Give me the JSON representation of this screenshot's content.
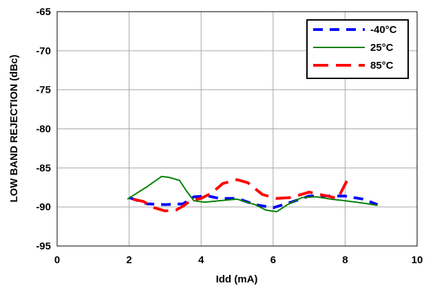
{
  "chart_data": {
    "type": "line",
    "title": "",
    "xlabel": "Idd (mA)",
    "ylabel": "LOW BAND REJECTION (dBc)",
    "xlim": [
      0,
      10
    ],
    "ylim": [
      -95,
      -65
    ],
    "x_ticks": [
      0,
      2,
      4,
      6,
      8,
      10
    ],
    "y_ticks": [
      -65,
      -70,
      -75,
      -80,
      -85,
      -90,
      -95
    ],
    "grid": true,
    "legend_position": "top-right",
    "series": [
      {
        "name": "-40°C",
        "color": "#0000ff",
        "dash": "short-dash",
        "points": [
          [
            2.0,
            -88.8
          ],
          [
            2.5,
            -89.6
          ],
          [
            3.0,
            -89.7
          ],
          [
            3.5,
            -89.6
          ],
          [
            3.8,
            -88.7
          ],
          [
            4.2,
            -88.6
          ],
          [
            4.5,
            -88.9
          ],
          [
            5.0,
            -88.9
          ],
          [
            5.5,
            -89.7
          ],
          [
            6.0,
            -90.1
          ],
          [
            6.5,
            -89.4
          ],
          [
            7.0,
            -88.6
          ],
          [
            7.5,
            -88.6
          ],
          [
            8.0,
            -88.6
          ],
          [
            8.5,
            -89.0
          ],
          [
            8.9,
            -89.7
          ]
        ]
      },
      {
        "name": "25°C",
        "color": "#008000",
        "dash": "solid",
        "points": [
          [
            1.95,
            -89.0
          ],
          [
            2.5,
            -87.4
          ],
          [
            2.9,
            -86.1
          ],
          [
            3.1,
            -86.2
          ],
          [
            3.4,
            -86.6
          ],
          [
            3.6,
            -88.0
          ],
          [
            3.8,
            -89.2
          ],
          [
            4.1,
            -89.4
          ],
          [
            4.5,
            -89.2
          ],
          [
            5.0,
            -89.0
          ],
          [
            5.5,
            -89.7
          ],
          [
            5.8,
            -90.4
          ],
          [
            6.1,
            -90.6
          ],
          [
            6.4,
            -89.7
          ],
          [
            6.8,
            -88.8
          ],
          [
            7.2,
            -88.7
          ],
          [
            7.6,
            -89.0
          ],
          [
            8.0,
            -89.2
          ],
          [
            8.5,
            -89.5
          ],
          [
            8.9,
            -89.8
          ]
        ]
      },
      {
        "name": "85°C",
        "color": "#ff0000",
        "dash": "long-dash",
        "points": [
          [
            2.1,
            -89.0
          ],
          [
            2.4,
            -89.3
          ],
          [
            2.7,
            -90.1
          ],
          [
            3.0,
            -90.5
          ],
          [
            3.3,
            -90.4
          ],
          [
            3.5,
            -89.9
          ],
          [
            3.7,
            -89.2
          ],
          [
            4.0,
            -88.9
          ],
          [
            4.3,
            -88.2
          ],
          [
            4.6,
            -87.0
          ],
          [
            5.0,
            -86.5
          ],
          [
            5.3,
            -86.9
          ],
          [
            5.7,
            -88.4
          ],
          [
            6.1,
            -88.9
          ],
          [
            6.5,
            -88.8
          ],
          [
            7.0,
            -88.1
          ],
          [
            7.4,
            -88.5
          ],
          [
            7.8,
            -88.9
          ],
          [
            8.1,
            -86.2
          ]
        ]
      }
    ]
  }
}
